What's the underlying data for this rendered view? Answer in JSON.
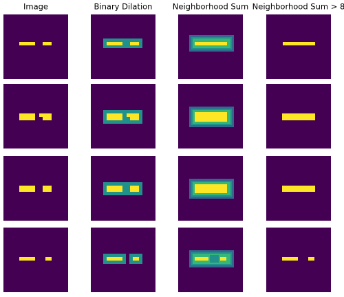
{
  "columns": [
    {
      "title": "Image"
    },
    {
      "title": "Binary Dilation"
    },
    {
      "title": "Neighborhood Sum"
    },
    {
      "title": "Neighborhood Sum > 8"
    }
  ]
}
